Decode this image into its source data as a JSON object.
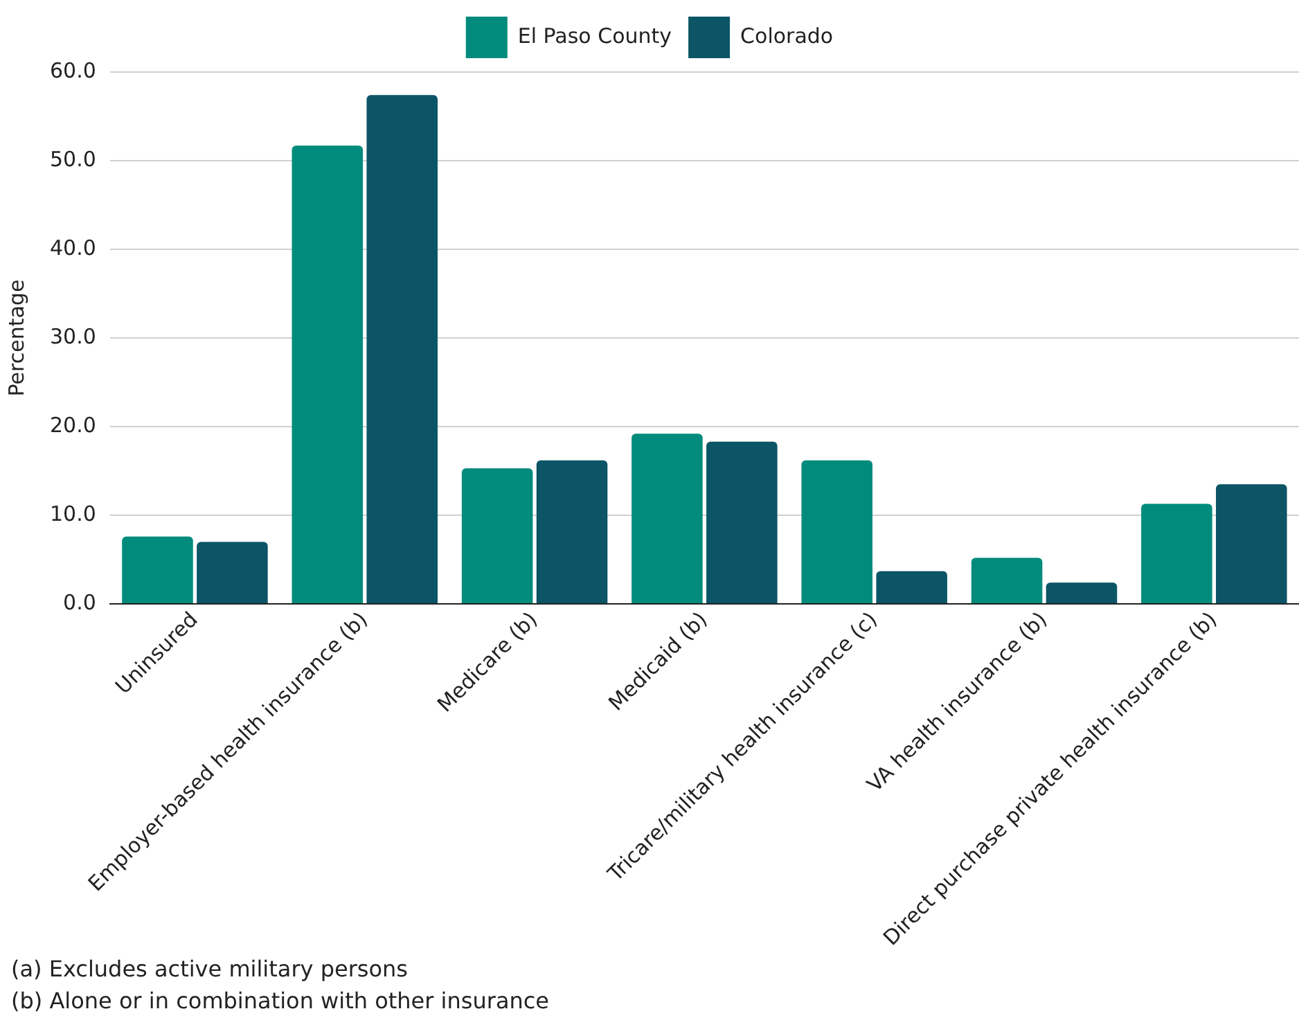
{
  "chart_data": {
    "type": "bar",
    "ylabel": "Percentage",
    "categories": [
      "Uninsured",
      "Employer-based health insurance (b)",
      "Medicare (b)",
      "Medicaid (b)",
      "Tricare/military health insurance (c)",
      "VA health insurance (b)",
      "Direct purchase private health insurance (b)"
    ],
    "series": [
      {
        "name": "El Paso County",
        "color": "#008b7d",
        "values": [
          7.6,
          51.7,
          15.3,
          19.2,
          16.2,
          5.2,
          11.3
        ]
      },
      {
        "name": "Colorado",
        "color": "#0b5566",
        "values": [
          7.0,
          57.4,
          16.2,
          18.3,
          3.7,
          2.4,
          13.5
        ]
      }
    ],
    "ylim": [
      0,
      60
    ],
    "yticks": [
      {
        "value": 0,
        "label": "0.0"
      },
      {
        "value": 10,
        "label": "10.0"
      },
      {
        "value": 20,
        "label": "20.0"
      },
      {
        "value": 30,
        "label": "30.0"
      },
      {
        "value": 40,
        "label": "40.0"
      },
      {
        "value": 50,
        "label": "50.0"
      },
      {
        "value": 60,
        "label": "60.0"
      }
    ],
    "grid": "y",
    "legend": "top",
    "annotations": [
      "(a) Excludes active military persons",
      "(b) Alone or in combination with other insurance"
    ]
  }
}
